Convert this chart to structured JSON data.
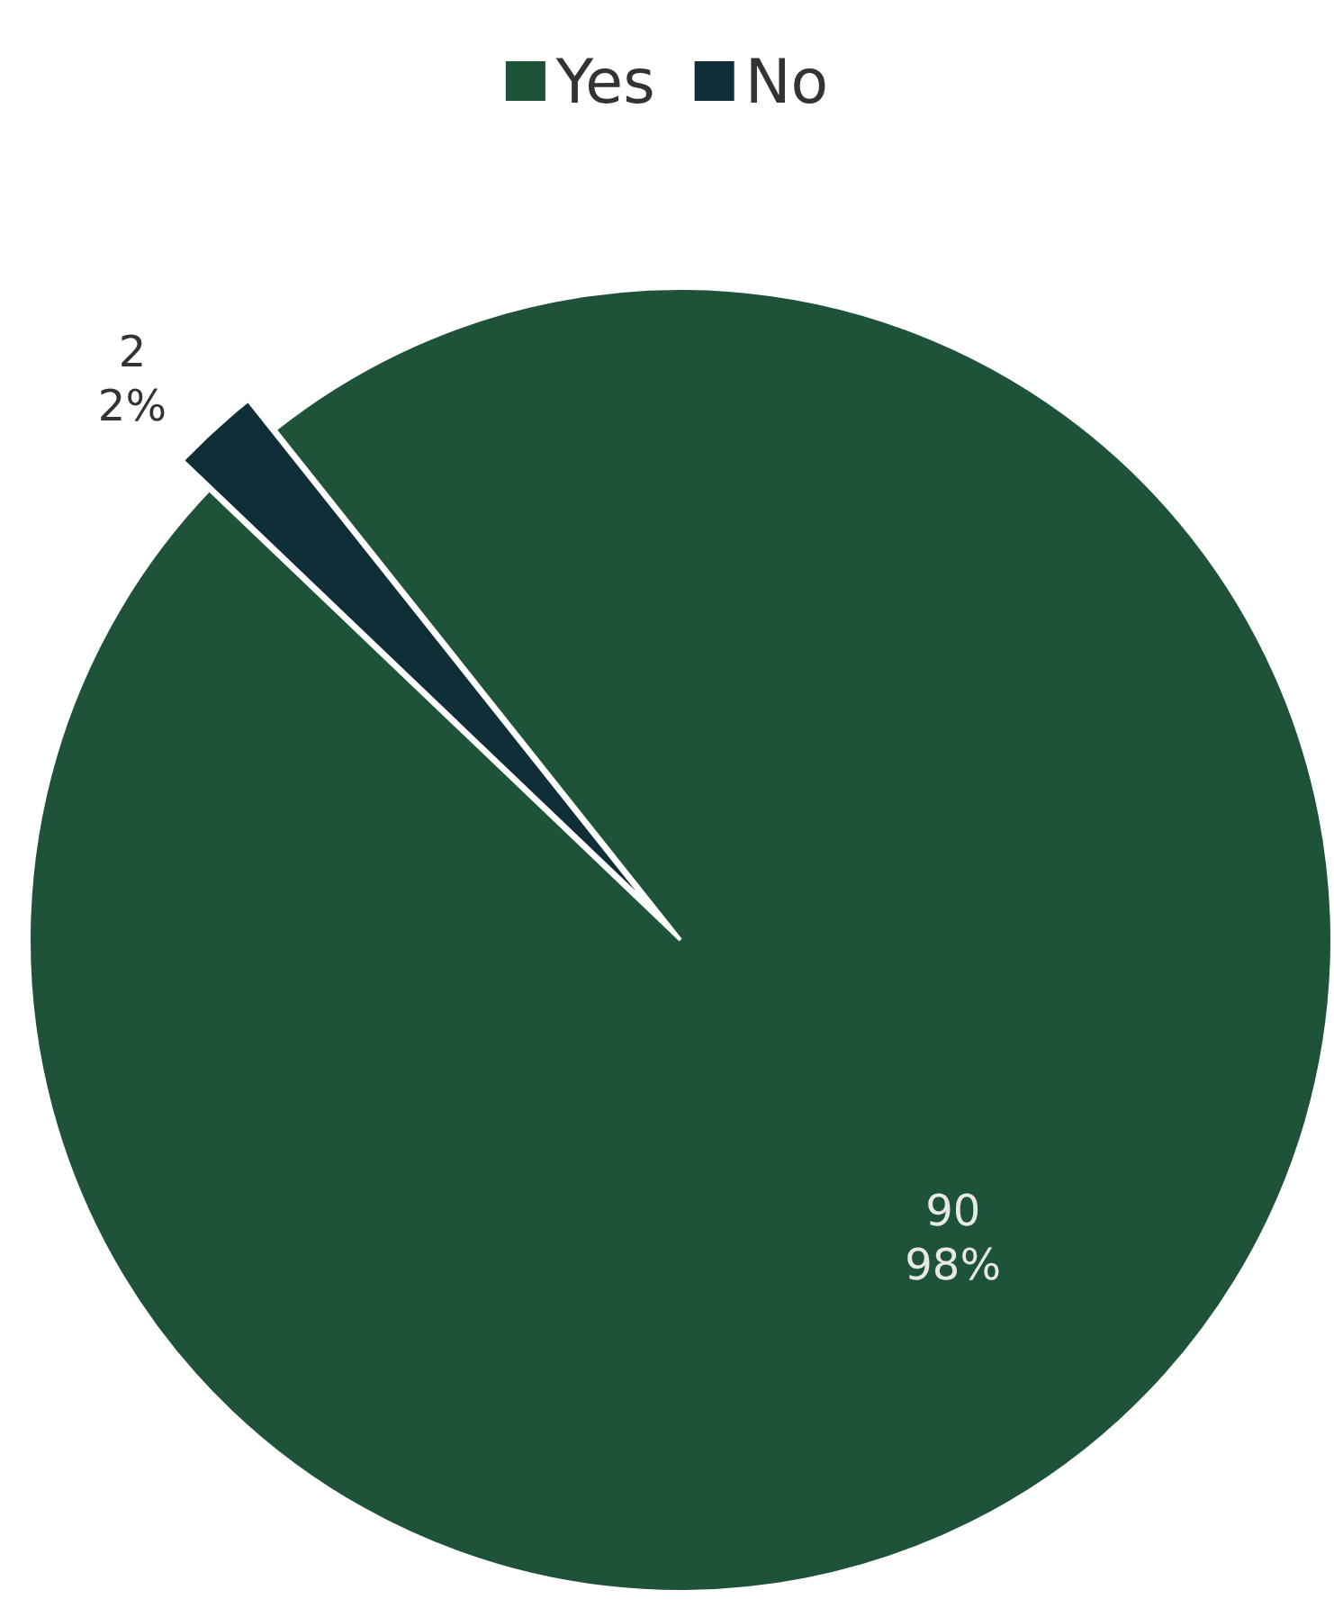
{
  "chart_data": {
    "type": "pie",
    "categories": [
      "Yes",
      "No"
    ],
    "values": [
      90,
      2
    ],
    "colors": [
      "#1f5339",
      "#0f2e38"
    ],
    "value_labels": [
      "90\n98%",
      "2\n2%"
    ],
    "legend": "top"
  }
}
